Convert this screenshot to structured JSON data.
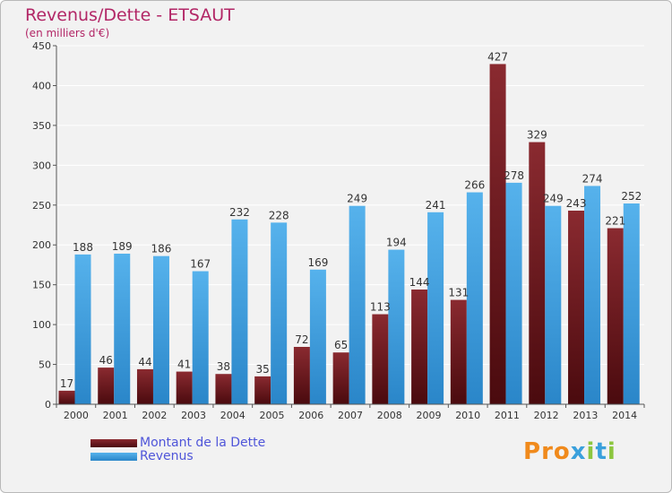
{
  "header": {
    "title": "Revenus/Dette - ETSAUT",
    "subtitle": "(en milliers d'€)"
  },
  "chart_data": {
    "type": "bar",
    "title": "Revenus/Dette - ETSAUT",
    "subtitle": "(en milliers d'€)",
    "xlabel": "",
    "ylabel": "",
    "ylim": [
      0,
      450
    ],
    "yticks": [
      0,
      50,
      100,
      150,
      200,
      250,
      300,
      350,
      400,
      450
    ],
    "grid": true,
    "legend_position": "bottom-left",
    "categories": [
      "2000",
      "2001",
      "2002",
      "2003",
      "2004",
      "2005",
      "2006",
      "2007",
      "2008",
      "2009",
      "2010",
      "2011",
      "2012",
      "2013",
      "2014"
    ],
    "series": [
      {
        "name": "Montant de la Dette",
        "color": "#7a1f24",
        "values": [
          17,
          46,
          44,
          41,
          38,
          35,
          72,
          65,
          113,
          144,
          131,
          427,
          329,
          243,
          221
        ]
      },
      {
        "name": "Revenus",
        "color": "#3fa0e2",
        "values": [
          188,
          189,
          186,
          167,
          232,
          228,
          169,
          249,
          194,
          241,
          266,
          278,
          249,
          274,
          252
        ]
      }
    ]
  },
  "colors": {
    "title": "#b22666",
    "legend_text": "#4f55d9",
    "debt": "#7a1f24",
    "revenue": "#3fa0e2",
    "background": "#f2f2f2",
    "grid": "#ffffff"
  },
  "logo": {
    "text": "Proxiti",
    "letters": [
      "P",
      "r",
      "o",
      "x",
      "i",
      "t",
      "i"
    ],
    "letter_colors": [
      "#f08a1c",
      "#f08a1c",
      "#f08a1c",
      "#3aa0dc",
      "#8cc63f",
      "#3aa0dc",
      "#8cc63f"
    ]
  }
}
